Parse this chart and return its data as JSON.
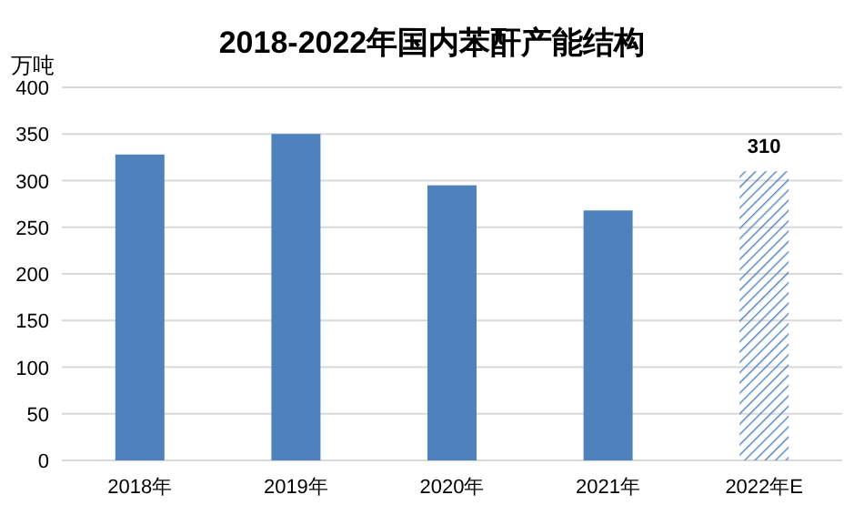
{
  "chart_data": {
    "type": "bar",
    "title": "2018-2022年国内苯酐产能结构",
    "ylabel": "万吨",
    "categories": [
      "2018年",
      "2019年",
      "2020年",
      "2021年",
      "2022年E"
    ],
    "values": [
      328,
      350,
      295,
      268,
      310
    ],
    "colors": [
      "#4f81bd",
      "#4f81bd",
      "#4f81bd",
      "#4f81bd",
      "#4f81bd"
    ],
    "value_labels": [
      null,
      null,
      null,
      null,
      "310"
    ],
    "ylim": [
      0,
      400
    ],
    "yticks": [
      0,
      50,
      100,
      150,
      200,
      250,
      300,
      350,
      400
    ],
    "grid": "y"
  }
}
